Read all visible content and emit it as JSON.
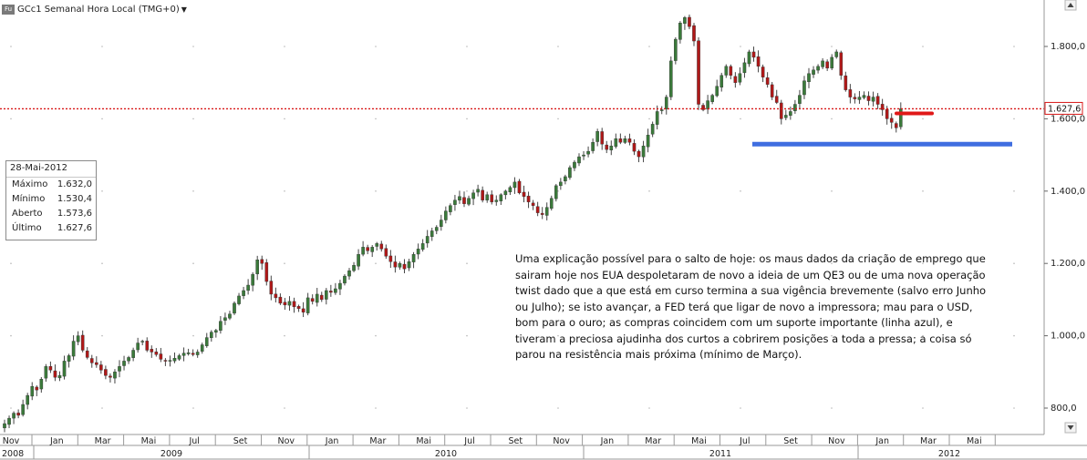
{
  "header": {
    "icon_label": "Fu",
    "title": "GCc1 Semanal Hora Local (TMG+0)"
  },
  "ohlc_box": {
    "date": "28-Mai-2012",
    "rows": [
      {
        "label": "Máximo",
        "value": "1.632,0"
      },
      {
        "label": "Mínimo",
        "value": "1.530,4"
      },
      {
        "label": "Aberto",
        "value": "1.573,6"
      },
      {
        "label": "Último",
        "value": "1.627,6"
      }
    ]
  },
  "annotation": "Uma explicação possível para o salto de hoje: os maus dados da criação de emprego que sairam hoje nos EUA despoletaram de novo a ideia de um QE3 ou de uma nova operação twist dado que a que está em curso termina a sua vigência brevemente (salvo erro Junho ou Julho); se isto avançar, a FED terá que ligar de novo a impressora; mau para o USD, bom para o ouro; as compras coincidem com um suporte importante (linha azul), e tiveram a preciosa ajudinha dos curtos a cobrirem posições a toda a pressa; a coisa só parou na resistência mais próxima (mínimo de Março).",
  "colors": {
    "up": "#3a7a3a",
    "down": "#b01818",
    "price_line": "#d81818",
    "support_line": "#3f6ee0",
    "resistance_mark": "#e01818",
    "last_badge_border": "#d81818"
  },
  "chart_data": {
    "type": "candlestick",
    "title": "GCc1 Semanal Hora Local (TMG+0)",
    "y_ticks": [
      800,
      1000,
      1200,
      1400,
      1600,
      1800
    ],
    "y_tick_labels": [
      "800,0",
      "1.000,0",
      "1.200,0",
      "1.400,0",
      "1.600,0",
      "1.800,0"
    ],
    "ylim": [
      740,
      1930
    ],
    "x_month_labels": [
      "Nov",
      "Jan",
      "Mar",
      "Mai",
      "Jul",
      "Set",
      "Nov",
      "Jan",
      "Mar",
      "Mai",
      "Jul",
      "Set",
      "Nov",
      "Jan",
      "Mar",
      "Mai",
      "Jul",
      "Set",
      "Nov",
      "Jan",
      "Mar",
      "Mai"
    ],
    "x_year_labels": [
      "2008",
      "2009",
      "2010",
      "2011",
      "2012"
    ],
    "last_price": 1627.6,
    "last_price_label": "1.627,6",
    "support_level": 1530,
    "resistance_level": 1615,
    "grid": true,
    "weekly_closes": [
      757,
      772,
      786,
      780,
      810,
      835,
      860,
      850,
      880,
      915,
      905,
      885,
      890,
      930,
      945,
      985,
      1000,
      960,
      940,
      925,
      920,
      905,
      890,
      885,
      900,
      915,
      930,
      940,
      960,
      980,
      985,
      960,
      955,
      948,
      935,
      930,
      932,
      938,
      945,
      952,
      953,
      948,
      955,
      975,
      995,
      1010,
      1015,
      1040,
      1050,
      1060,
      1090,
      1110,
      1125,
      1140,
      1170,
      1210,
      1200,
      1150,
      1115,
      1105,
      1090,
      1085,
      1095,
      1080,
      1075,
      1065,
      1105,
      1095,
      1115,
      1100,
      1125,
      1120,
      1130,
      1145,
      1165,
      1180,
      1195,
      1225,
      1245,
      1235,
      1245,
      1255,
      1240,
      1220,
      1205,
      1190,
      1200,
      1185,
      1205,
      1225,
      1240,
      1255,
      1275,
      1290,
      1300,
      1320,
      1345,
      1360,
      1375,
      1385,
      1365,
      1380,
      1395,
      1405,
      1375,
      1390,
      1370,
      1375,
      1390,
      1400,
      1410,
      1425,
      1395,
      1385,
      1370,
      1360,
      1340,
      1335,
      1355,
      1380,
      1415,
      1425,
      1440,
      1465,
      1480,
      1495,
      1500,
      1510,
      1535,
      1565,
      1530,
      1515,
      1525,
      1545,
      1535,
      1545,
      1535,
      1510,
      1495,
      1525,
      1555,
      1585,
      1620,
      1625,
      1660,
      1760,
      1820,
      1865,
      1880,
      1855,
      1815,
      1640,
      1625,
      1650,
      1665,
      1690,
      1720,
      1745,
      1720,
      1700,
      1725,
      1755,
      1785,
      1770,
      1745,
      1715,
      1695,
      1660,
      1645,
      1600,
      1610,
      1620,
      1640,
      1665,
      1705,
      1725,
      1735,
      1745,
      1760,
      1740,
      1770,
      1785,
      1720,
      1680,
      1660,
      1655,
      1660,
      1665,
      1650,
      1660,
      1640,
      1625,
      1600,
      1590,
      1575,
      1627.6
    ],
    "legend": "none"
  }
}
